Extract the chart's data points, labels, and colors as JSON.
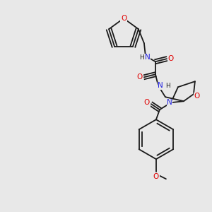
{
  "bg_color": "#e8e8e8",
  "bond_color": "#1a1a1a",
  "atom_colors": {
    "O": "#e00000",
    "N": "#2020e0",
    "C": "#1a1a1a"
  },
  "font_size_atom": 7.5,
  "font_size_small": 6.5,
  "linewidth": 1.3
}
